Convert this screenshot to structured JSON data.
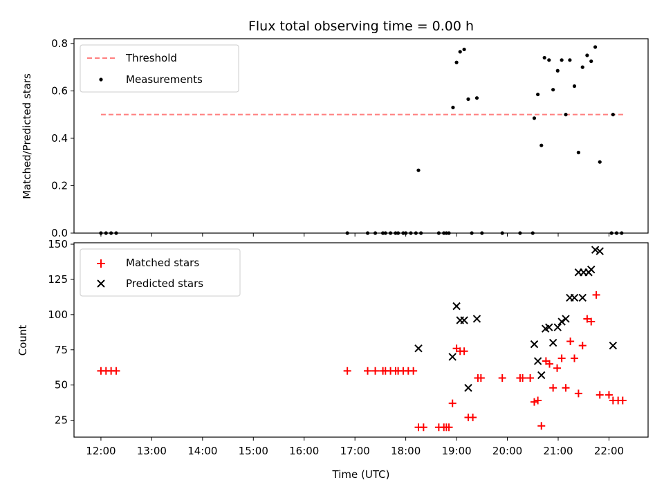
{
  "title": "Flux total observing time = 0.00 h",
  "chart_data": [
    {
      "type": "scatter",
      "ylabel": "Matched/Predicted stars",
      "xlim": [
        11.47,
        22.77
      ],
      "ylim": [
        0,
        0.82
      ],
      "yticks": [
        "0.0",
        "0.2",
        "0.4",
        "0.6",
        "0.8"
      ],
      "ytick_values": [
        0,
        0.2,
        0.4,
        0.6,
        0.8
      ],
      "legend": "top-left",
      "threshold": {
        "name": "Threshold",
        "value": 0.5,
        "x": [
          12.0,
          22.3
        ],
        "color": "#ff7f7f"
      },
      "series": [
        {
          "name": "Measurements",
          "color": "#000000",
          "points": [
            [
              12.0,
              0
            ],
            [
              12.1,
              0
            ],
            [
              12.2,
              0
            ],
            [
              12.3,
              0
            ],
            [
              16.85,
              0
            ],
            [
              17.25,
              0
            ],
            [
              17.4,
              0
            ],
            [
              17.55,
              0
            ],
            [
              17.6,
              0
            ],
            [
              17.7,
              0
            ],
            [
              17.8,
              0
            ],
            [
              17.85,
              0
            ],
            [
              17.95,
              0
            ],
            [
              18.0,
              0
            ],
            [
              18.1,
              0
            ],
            [
              18.2,
              0
            ],
            [
              18.3,
              0
            ],
            [
              18.65,
              0
            ],
            [
              18.75,
              0
            ],
            [
              18.8,
              0
            ],
            [
              18.85,
              0
            ],
            [
              19.3,
              0
            ],
            [
              19.5,
              0
            ],
            [
              19.9,
              0
            ],
            [
              20.25,
              0
            ],
            [
              20.5,
              0
            ],
            [
              18.25,
              0.265
            ],
            [
              18.93,
              0.53
            ],
            [
              19.0,
              0.72
            ],
            [
              19.07,
              0.765
            ],
            [
              19.15,
              0.775
            ],
            [
              19.23,
              0.565
            ],
            [
              19.4,
              0.57
            ],
            [
              20.53,
              0.485
            ],
            [
              20.6,
              0.585
            ],
            [
              20.67,
              0.37
            ],
            [
              20.73,
              0.74
            ],
            [
              20.82,
              0.73
            ],
            [
              20.9,
              0.605
            ],
            [
              20.99,
              0.685
            ],
            [
              21.07,
              0.73
            ],
            [
              21.15,
              0.5
            ],
            [
              21.23,
              0.73
            ],
            [
              21.32,
              0.62
            ],
            [
              21.4,
              0.34
            ],
            [
              21.48,
              0.7
            ],
            [
              21.57,
              0.75
            ],
            [
              21.65,
              0.725
            ],
            [
              21.73,
              0.785
            ],
            [
              21.82,
              0.3
            ],
            [
              22.08,
              0.5
            ],
            [
              22.05,
              0
            ],
            [
              22.15,
              0
            ],
            [
              22.25,
              0
            ]
          ]
        }
      ]
    },
    {
      "type": "scatter",
      "xlabel": "Time (UTC)",
      "ylabel": "Count",
      "xlim": [
        11.47,
        22.77
      ],
      "ylim": [
        13,
        151
      ],
      "yticks": [
        "25",
        "50",
        "75",
        "100",
        "125",
        "150"
      ],
      "ytick_values": [
        25,
        50,
        75,
        100,
        125,
        150
      ],
      "xticks": [
        "12:00",
        "13:00",
        "14:00",
        "15:00",
        "16:00",
        "17:00",
        "18:00",
        "19:00",
        "20:00",
        "21:00",
        "22:00"
      ],
      "xtick_values": [
        12,
        13,
        14,
        15,
        16,
        17,
        18,
        19,
        20,
        21,
        22
      ],
      "legend": "top-left",
      "series": [
        {
          "name": "Matched stars",
          "marker": "plus",
          "color": "#ff0000",
          "points": [
            [
              12.0,
              60
            ],
            [
              12.1,
              60
            ],
            [
              12.2,
              60
            ],
            [
              12.3,
              60
            ],
            [
              16.85,
              60
            ],
            [
              17.25,
              60
            ],
            [
              17.4,
              60
            ],
            [
              17.55,
              60
            ],
            [
              17.6,
              60
            ],
            [
              17.7,
              60
            ],
            [
              17.8,
              60
            ],
            [
              17.85,
              60
            ],
            [
              17.95,
              60
            ],
            [
              18.05,
              60
            ],
            [
              18.15,
              60
            ],
            [
              18.25,
              20
            ],
            [
              18.35,
              20
            ],
            [
              18.65,
              20
            ],
            [
              18.75,
              20
            ],
            [
              18.8,
              20
            ],
            [
              18.85,
              20
            ],
            [
              18.92,
              37
            ],
            [
              19.0,
              76
            ],
            [
              19.07,
              74
            ],
            [
              19.15,
              74
            ],
            [
              19.23,
              27
            ],
            [
              19.32,
              27
            ],
            [
              19.42,
              55
            ],
            [
              19.48,
              55
            ],
            [
              19.9,
              55
            ],
            [
              20.25,
              55
            ],
            [
              20.3,
              55
            ],
            [
              20.45,
              55
            ],
            [
              20.53,
              38
            ],
            [
              20.6,
              39
            ],
            [
              20.67,
              21
            ],
            [
              20.76,
              67
            ],
            [
              20.83,
              65
            ],
            [
              20.9,
              48
            ],
            [
              20.98,
              62
            ],
            [
              21.07,
              69
            ],
            [
              21.15,
              48
            ],
            [
              21.24,
              81
            ],
            [
              21.32,
              69
            ],
            [
              21.4,
              44
            ],
            [
              21.48,
              78
            ],
            [
              21.57,
              97
            ],
            [
              21.65,
              95
            ],
            [
              21.75,
              114
            ],
            [
              21.82,
              43
            ],
            [
              22.0,
              43
            ],
            [
              22.08,
              39
            ],
            [
              22.18,
              39
            ],
            [
              22.27,
              39
            ]
          ]
        },
        {
          "name": "Predicted stars",
          "marker": "x",
          "color": "#000000",
          "points": [
            [
              18.25,
              76
            ],
            [
              18.92,
              70
            ],
            [
              19.0,
              106
            ],
            [
              19.07,
              96
            ],
            [
              19.15,
              96
            ],
            [
              19.23,
              48
            ],
            [
              19.4,
              97
            ],
            [
              20.53,
              79
            ],
            [
              20.6,
              67
            ],
            [
              20.67,
              57
            ],
            [
              20.75,
              90
            ],
            [
              20.82,
              91
            ],
            [
              20.9,
              80
            ],
            [
              20.99,
              91
            ],
            [
              21.07,
              95
            ],
            [
              21.15,
              97
            ],
            [
              21.23,
              112
            ],
            [
              21.32,
              112
            ],
            [
              21.4,
              130
            ],
            [
              21.48,
              112
            ],
            [
              21.5,
              130
            ],
            [
              21.6,
              130
            ],
            [
              21.65,
              132
            ],
            [
              21.73,
              146
            ],
            [
              21.82,
              145
            ],
            [
              22.08,
              78
            ]
          ]
        }
      ]
    }
  ]
}
